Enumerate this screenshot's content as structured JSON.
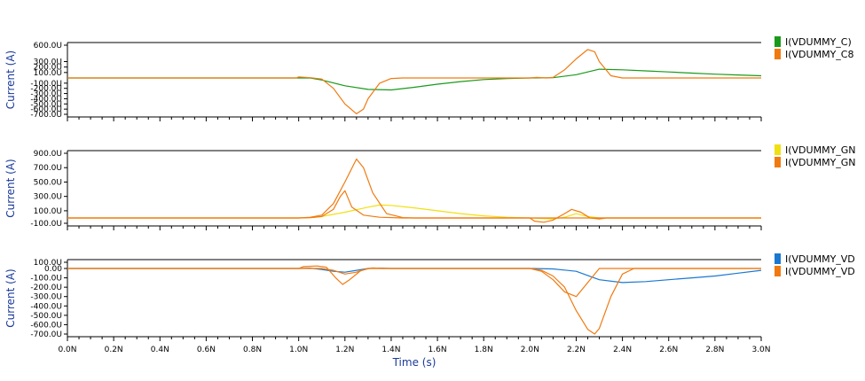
{
  "chart_data": [
    {
      "type": "line",
      "ylabel": "Current (A)",
      "xlabel": "",
      "xlim": [
        0,
        3.0
      ],
      "ylim": [
        -800,
        600
      ],
      "yticks": [
        600,
        300,
        200,
        100,
        -100,
        -200,
        -300,
        -400,
        -500,
        -600,
        -700
      ],
      "ytick_labels": [
        "600.0U",
        "300.0U",
        "200.0U",
        "100.0U",
        "-100.0U",
        "-200.0U",
        "-300.0U",
        "-400.0U",
        "-500.0U",
        "-600.0U",
        "-700.0U"
      ],
      "series": [
        {
          "name": "I(VDUMMY_C)",
          "color": "#1a9a1a",
          "x": [
            0,
            1.05,
            1.1,
            1.2,
            1.3,
            1.4,
            1.5,
            1.6,
            1.7,
            1.8,
            1.9,
            2.0,
            2.1,
            2.2,
            2.3,
            2.4,
            2.5,
            2.6,
            2.7,
            2.8,
            2.9,
            3.0
          ],
          "y": [
            0,
            0,
            -40,
            -150,
            -220,
            -230,
            -180,
            -120,
            -70,
            -30,
            -10,
            0,
            5,
            60,
            160,
            150,
            130,
            110,
            90,
            70,
            55,
            40
          ]
        },
        {
          "name": "I(VDUMMY_C8",
          "color": "#f07a10",
          "x": [
            0,
            0.99,
            1.0,
            1.05,
            1.1,
            1.15,
            1.2,
            1.25,
            1.28,
            1.3,
            1.35,
            1.4,
            1.45,
            2.0,
            2.03,
            2.07,
            2.1,
            2.15,
            2.2,
            2.25,
            2.28,
            2.3,
            2.35,
            2.4,
            2.45,
            3.0
          ],
          "y": [
            0,
            0,
            20,
            5,
            -20,
            -200,
            -500,
            -690,
            -600,
            -400,
            -100,
            -10,
            0,
            0,
            10,
            0,
            10,
            150,
            350,
            520,
            480,
            300,
            40,
            0,
            0,
            0
          ]
        }
      ]
    },
    {
      "type": "line",
      "ylabel": "Current (A)",
      "xlabel": "",
      "xlim": [
        0,
        3.0
      ],
      "ylim": [
        -150,
        950
      ],
      "yticks": [
        900,
        700,
        500,
        300,
        100,
        -100
      ],
      "ytick_labels": [
        "900.0U",
        "700.0U",
        "500.0U",
        "300.0U",
        "100.0U",
        "-100.0U"
      ],
      "series": [
        {
          "name": "I(VDUMMY_GN",
          "color": "#f0e010",
          "x": [
            0,
            1.0,
            1.05,
            1.1,
            1.2,
            1.3,
            1.35,
            1.4,
            1.5,
            1.6,
            1.7,
            1.8,
            1.9,
            2.0,
            2.1,
            2.15,
            2.2,
            2.25,
            2.3,
            3.0
          ],
          "y": [
            0,
            0,
            5,
            20,
            80,
            150,
            180,
            175,
            140,
            100,
            60,
            30,
            10,
            0,
            -20,
            10,
            60,
            20,
            0,
            0
          ]
        },
        {
          "name": "I(VDUMMY_GN",
          "color": "#f07a10",
          "x": [
            0,
            1.0,
            1.05,
            1.1,
            1.15,
            1.2,
            1.25,
            1.28,
            1.32,
            1.38,
            1.45,
            1.5,
            3.0
          ],
          "y": [
            0,
            0,
            10,
            40,
            200,
            500,
            820,
            700,
            350,
            60,
            5,
            0,
            0
          ]
        },
        {
          "name": "I(VDUMMY_GN",
          "color": "#f07a10",
          "x": [
            0,
            1.0,
            1.05,
            1.1,
            1.15,
            1.18,
            1.2,
            1.23,
            1.28,
            1.35,
            1.45,
            2.0,
            2.02,
            2.06,
            2.1,
            2.15,
            2.18,
            2.22,
            2.26,
            2.3,
            2.33,
            3.0
          ],
          "y": [
            0,
            0,
            5,
            20,
            120,
            300,
            380,
            150,
            40,
            10,
            0,
            0,
            -60,
            -80,
            -40,
            60,
            120,
            80,
            0,
            -20,
            0,
            0
          ]
        }
      ]
    },
    {
      "type": "line",
      "xlabel": "Time (s)",
      "ylabel": "Current (A)",
      "xlim": [
        0,
        3.0
      ],
      "ylim": [
        -760,
        110
      ],
      "yticks": [
        100,
        0,
        -100,
        -200,
        -300,
        -400,
        -500,
        -600,
        -700
      ],
      "ytick_labels": [
        "100.0U",
        "0.00",
        "-100.0U",
        "-200.0U",
        "-300.0U",
        "-400.0U",
        "-500.0U",
        "-600.0U",
        "-700.0U"
      ],
      "xticks": [
        0,
        0.2,
        0.4,
        0.6,
        0.8,
        1.0,
        1.2,
        1.4,
        1.6,
        1.8,
        2.0,
        2.2,
        2.4,
        2.6,
        2.8,
        3.0
      ],
      "xtick_labels": [
        "0.0N",
        "0.2N",
        "0.4N",
        "0.6N",
        "0.8N",
        "1.0N",
        "1.2N",
        "1.4N",
        "1.6N",
        "1.8N",
        "2.0N",
        "2.2N",
        "2.4N",
        "2.6N",
        "2.8N",
        "3.0N"
      ],
      "series": [
        {
          "name": "I(VDUMMY_VD",
          "color": "#1a78d0",
          "x": [
            0,
            1.0,
            1.05,
            1.1,
            1.15,
            1.2,
            1.25,
            1.3,
            1.35,
            1.4,
            2.0,
            2.1,
            2.2,
            2.3,
            2.4,
            2.5,
            2.6,
            2.7,
            2.8,
            2.9,
            3.0
          ],
          "y": [
            0,
            0,
            5,
            -10,
            -30,
            -40,
            -20,
            0,
            5,
            0,
            0,
            -5,
            -30,
            -120,
            -150,
            -140,
            -120,
            -100,
            -80,
            -50,
            -20
          ]
        },
        {
          "name": "I(VDUMMY_VD",
          "color": "#f07a10",
          "x": [
            0,
            1.0,
            1.02,
            1.08,
            1.12,
            1.16,
            1.19,
            1.22,
            1.27,
            1.32,
            1.36,
            1.4,
            2.0,
            2.05,
            2.1,
            2.15,
            2.2,
            2.25,
            2.28,
            2.3,
            2.35,
            2.4,
            2.45,
            3.0
          ],
          "y": [
            0,
            0,
            30,
            40,
            20,
            -100,
            -170,
            -120,
            -20,
            10,
            0,
            0,
            0,
            -20,
            -80,
            -200,
            -450,
            -650,
            -700,
            -640,
            -300,
            -60,
            0,
            0
          ]
        },
        {
          "name": "I(VDUMMY_VD",
          "color": "#f07a10",
          "x": [
            0,
            1.1,
            1.15,
            1.2,
            1.25,
            1.3,
            1.35,
            2.0,
            2.05,
            2.1,
            2.15,
            2.2,
            2.25,
            2.3,
            3.0
          ],
          "y": [
            0,
            0,
            -20,
            -60,
            -40,
            0,
            0,
            0,
            -30,
            -120,
            -250,
            -300,
            -150,
            0,
            0
          ]
        }
      ]
    }
  ],
  "legend": [
    {
      "items": [
        {
          "label": "I(VDUMMY_C)",
          "color": "#1a9a1a"
        },
        {
          "label": "I(VDUMMY_C8",
          "color": "#f07a10"
        }
      ]
    },
    {
      "items": [
        {
          "label": "I(VDUMMY_GN",
          "color": "#f0e010"
        },
        {
          "label": "I(VDUMMY_GN",
          "color": "#f07a10"
        }
      ]
    },
    {
      "items": [
        {
          "label": "I(VDUMMY_VD",
          "color": "#1a78d0"
        },
        {
          "label": "I(VDUMMY_VD",
          "color": "#f07a10"
        }
      ]
    }
  ]
}
